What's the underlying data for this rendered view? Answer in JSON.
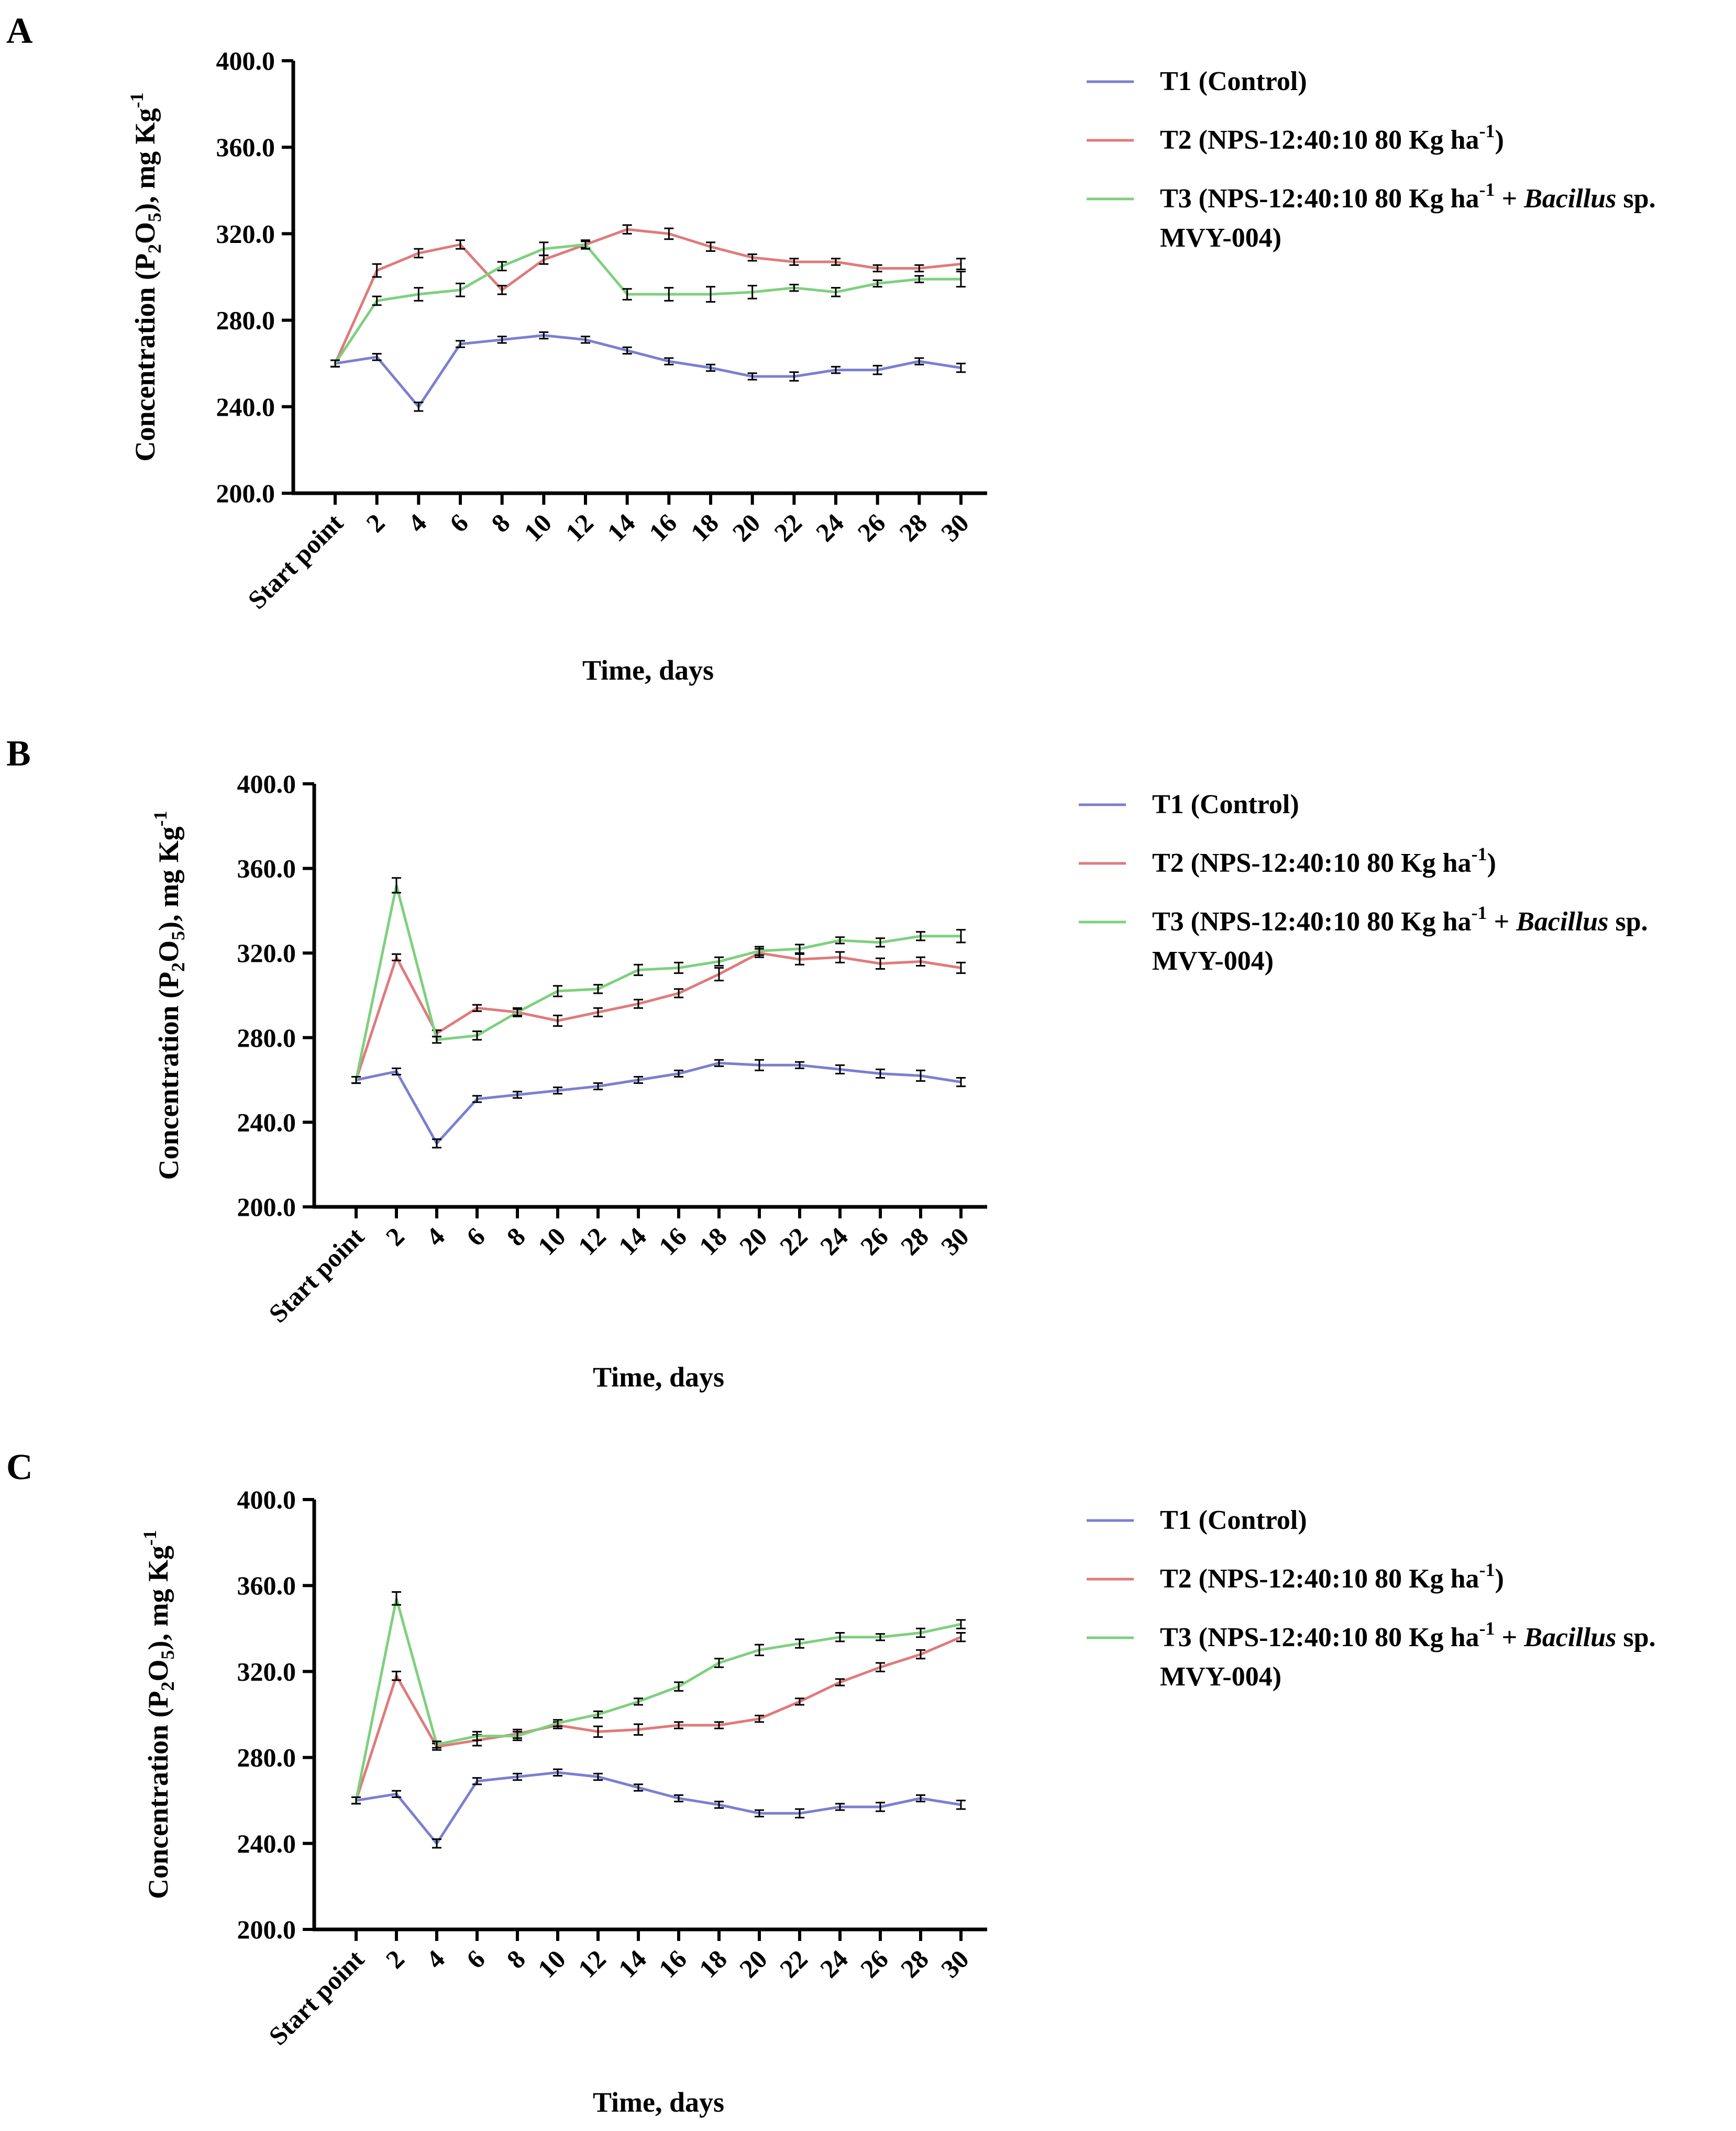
{
  "chart_data": [
    {
      "panel": "A",
      "type": "line",
      "x": [
        "Start point",
        "2",
        "4",
        "6",
        "8",
        "10",
        "12",
        "14",
        "16",
        "18",
        "20",
        "22",
        "24",
        "26",
        "28",
        "30"
      ],
      "ylim": [
        200,
        400
      ],
      "yticks": [
        "200.0",
        "240.0",
        "280.0",
        "320.0",
        "360.0",
        "400.0"
      ],
      "ytick_values": [
        200,
        240,
        280,
        320,
        360,
        400
      ],
      "xlabel": "Time, days",
      "ylabel": "Concentration (P2O5), mg Kg-1",
      "legend_position": "right",
      "series": [
        {
          "name": "T1 (Control)",
          "color": "#7b7fd0",
          "values": [
            260,
            263,
            240,
            269,
            271,
            273,
            271,
            266,
            261,
            258,
            254,
            254,
            257,
            257,
            261,
            258
          ],
          "errors": [
            1.5,
            1.5,
            2,
            1.5,
            1.5,
            1.5,
            1.5,
            1.5,
            1.5,
            1.5,
            1.5,
            2,
            1.5,
            2,
            1.5,
            2
          ]
        },
        {
          "name": "T2 (NPS-12:40:10 80 Kg ha-1)",
          "color": "#e07a7a",
          "values": [
            260,
            303,
            311,
            315,
            294,
            308,
            315,
            322,
            320,
            314,
            309,
            307,
            307,
            304,
            304,
            306
          ],
          "errors": [
            1.5,
            3,
            2,
            2,
            2,
            2,
            1.5,
            2,
            2.5,
            2,
            1.5,
            1.5,
            1.5,
            1.5,
            1.5,
            2.5
          ]
        },
        {
          "name": "T3 (NPS-12:40:10 80 Kg ha-1 + Bacillus sp. MVY-004)",
          "color": "#7ed07e",
          "values": [
            260,
            289,
            292,
            294,
            305,
            313,
            315,
            292,
            292,
            292,
            293,
            295,
            293,
            297,
            299,
            299
          ],
          "errors": [
            1.5,
            2,
            3,
            3,
            2,
            3,
            2,
            2.5,
            3,
            3.5,
            3,
            1.5,
            2,
            1.5,
            1.5,
            3.5
          ]
        }
      ]
    },
    {
      "panel": "B",
      "type": "line",
      "x": [
        "Start point",
        "2",
        "4",
        "6",
        "8",
        "10",
        "12",
        "14",
        "16",
        "18",
        "20",
        "22",
        "24",
        "26",
        "28",
        "30"
      ],
      "ylim": [
        200,
        400
      ],
      "yticks": [
        "200.0",
        "240.0",
        "280.0",
        "320.0",
        "360.0",
        "400.0"
      ],
      "ytick_values": [
        200,
        240,
        280,
        320,
        360,
        400
      ],
      "xlabel": "Time, days",
      "ylabel": "Concentration (P2O5), mg Kg-1",
      "legend_position": "right",
      "series": [
        {
          "name": "T1 (Control)",
          "color": "#7b7fd0",
          "values": [
            260,
            264,
            230,
            251,
            253,
            255,
            257,
            260,
            263,
            268,
            267,
            267,
            265,
            263,
            262,
            259
          ],
          "errors": [
            1.5,
            1.5,
            2,
            1.5,
            1.5,
            1.5,
            1.5,
            1.5,
            1.5,
            1.5,
            2.5,
            1.5,
            2,
            2,
            2.5,
            2
          ]
        },
        {
          "name": "T2 (NPS-12:40:10 80 Kg ha-1)",
          "color": "#e07a7a",
          "values": [
            260,
            318,
            282,
            294,
            292,
            288,
            292,
            296,
            301,
            310,
            320,
            317,
            318,
            315,
            316,
            313
          ],
          "errors": [
            1.5,
            1.5,
            1.5,
            1.5,
            2,
            2.5,
            2,
            2,
            2,
            3,
            2,
            2.5,
            2.5,
            2.5,
            2,
            2.5
          ]
        },
        {
          "name": "T3 (NPS-12:40:10 80 Kg ha-1 + Bacillus sp. MVY-004)",
          "color": "#7ed07e",
          "values": [
            260,
            352,
            279,
            281,
            292,
            302,
            303,
            312,
            313,
            316,
            321,
            322,
            326,
            325,
            328,
            328
          ],
          "errors": [
            1.5,
            3.5,
            1.5,
            2,
            1.5,
            2.5,
            2,
            2.5,
            2.5,
            2,
            2,
            2,
            1.5,
            2,
            2,
            3
          ]
        }
      ]
    },
    {
      "panel": "C",
      "type": "line",
      "x": [
        "Start point",
        "2",
        "4",
        "6",
        "8",
        "10",
        "12",
        "14",
        "16",
        "18",
        "20",
        "22",
        "24",
        "26",
        "28",
        "30"
      ],
      "ylim": [
        200,
        400
      ],
      "yticks": [
        "200.0",
        "240.0",
        "280.0",
        "320.0",
        "360.0",
        "400.0"
      ],
      "ytick_values": [
        200,
        240,
        280,
        320,
        360,
        400
      ],
      "xlabel": "Time, days",
      "ylabel": "Concentration (P2O5), mg Kg-1",
      "legend_position": "right",
      "series": [
        {
          "name": "T1 (Control)",
          "color": "#7b7fd0",
          "values": [
            260,
            263,
            240,
            269,
            271,
            273,
            271,
            266,
            261,
            258,
            254,
            254,
            257,
            257,
            261,
            258
          ],
          "errors": [
            1.5,
            1.5,
            2,
            1.5,
            1.5,
            1.5,
            1.5,
            1.5,
            1.5,
            1.5,
            1.5,
            2,
            1.5,
            2,
            1.5,
            2
          ]
        },
        {
          "name": "T2 (NPS-12:40:10 80 Kg ha-1)",
          "color": "#e07a7a",
          "values": [
            260,
            318,
            285,
            288,
            291,
            295,
            292,
            293,
            295,
            295,
            298,
            306,
            315,
            322,
            328,
            336
          ],
          "errors": [
            1.5,
            2,
            1.5,
            2.5,
            2,
            1.5,
            2.5,
            2.5,
            1.5,
            1.5,
            1.5,
            1.5,
            1.5,
            2,
            2,
            2
          ]
        },
        {
          "name": "T3 (NPS-12:40:10 80 Kg ha-1 + Bacillus sp. MVY-004)",
          "color": "#7ed07e",
          "values": [
            260,
            354,
            286,
            290,
            290,
            296,
            300,
            306,
            313,
            324,
            330,
            333,
            336,
            336,
            338,
            342
          ],
          "errors": [
            1.5,
            3,
            1.5,
            2,
            2,
            1.5,
            1.5,
            1.5,
            2,
            2,
            2.5,
            2,
            2,
            1.5,
            2,
            2
          ]
        }
      ]
    }
  ],
  "panels": [
    {
      "letter": "A",
      "ylabel": {
        "main": "Concentration (P",
        "sub": "2",
        "mid": "O",
        "sub2": "5",
        "tail": "), mg Kg",
        "sup": "-1"
      },
      "xlabel": "Time, days",
      "legend": [
        {
          "text": "T1 (Control)"
        },
        {
          "pre": "T2 (NPS-12:40:10 80 Kg ha",
          "sup": "-1",
          "post": ")"
        },
        {
          "pre": "T3 (NPS-12:40:10 80 Kg ha",
          "sup": "-1",
          "post": " + ",
          "italic": "Bacillus",
          "post2": " sp.",
          "line2": "MVY-004)"
        }
      ]
    },
    {
      "letter": "B",
      "ylabel": {
        "main": "Concentration (P",
        "sub": "2",
        "mid": "O",
        "sub2": "5",
        "tail": "), mg Kg",
        "sup": "-1"
      },
      "xlabel": "Time, days",
      "legend": [
        {
          "text": "T1 (Control)"
        },
        {
          "pre": "T2 (NPS-12:40:10 80 Kg ha",
          "sup": "-1",
          "post": ")"
        },
        {
          "pre": "T3 (NPS-12:40:10 80 Kg ha",
          "sup": "-1",
          "post": " + ",
          "italic": "Bacillus",
          "post2": " sp.",
          "line2": "MVY-004)"
        }
      ]
    },
    {
      "letter": "C",
      "ylabel": {
        "main": "Concentration (P",
        "sub": "2",
        "mid": "O",
        "sub2": "5",
        "tail": "), mg Kg",
        "sup": "-1"
      },
      "xlabel": "Time, days",
      "legend": [
        {
          "text": "T1 (Control)"
        },
        {
          "pre": "T2 (NPS-12:40:10 80 Kg ha",
          "sup": "-1",
          "post": ")"
        },
        {
          "pre": "T3 (NPS-12:40:10 80 Kg ha",
          "sup": "-1",
          "post": " + ",
          "italic": "Bacillus",
          "post2": " sp.",
          "line2": "MVY-004)"
        }
      ]
    }
  ]
}
